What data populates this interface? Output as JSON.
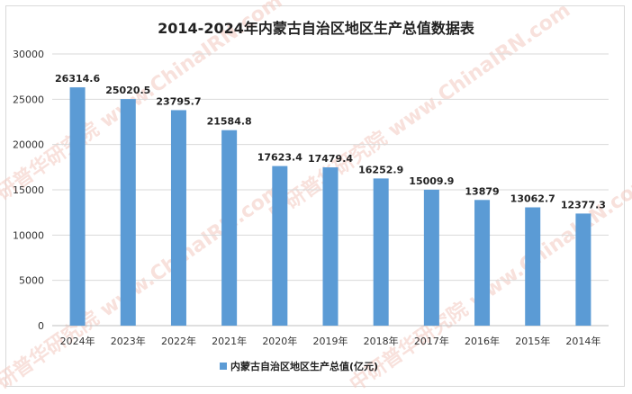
{
  "chart_data": {
    "type": "bar",
    "title": "2014-2024年内蒙古自治区地区生产总值数据表",
    "categories": [
      "2024年",
      "2023年",
      "2022年",
      "2021年",
      "2020年",
      "2019年",
      "2018年",
      "2017年",
      "2016年",
      "2015年",
      "2014年"
    ],
    "series": [
      {
        "name": "内蒙古自治区地区生产总值(亿元)",
        "values": [
          26314.6,
          25020.5,
          23795.7,
          21584.8,
          17623.4,
          17479.4,
          16252.9,
          15009.9,
          13879,
          13062.7,
          12377.3
        ],
        "labels": [
          "26314.6",
          "25020.5",
          "23795.7",
          "21584.8",
          "17623.4",
          "17479.4",
          "16252.9",
          "15009.9",
          "13879",
          "13062.7",
          "12377.3"
        ]
      }
    ],
    "xlabel": "",
    "ylabel": "",
    "ylim": [
      0,
      30000
    ],
    "yticks": [
      0,
      5000,
      10000,
      15000,
      20000,
      25000,
      30000
    ],
    "grid": true,
    "legend": "bottom",
    "bar_color": "#5b9bd5",
    "watermark": "中研普华研究院 www.ChinaIRN.com"
  }
}
